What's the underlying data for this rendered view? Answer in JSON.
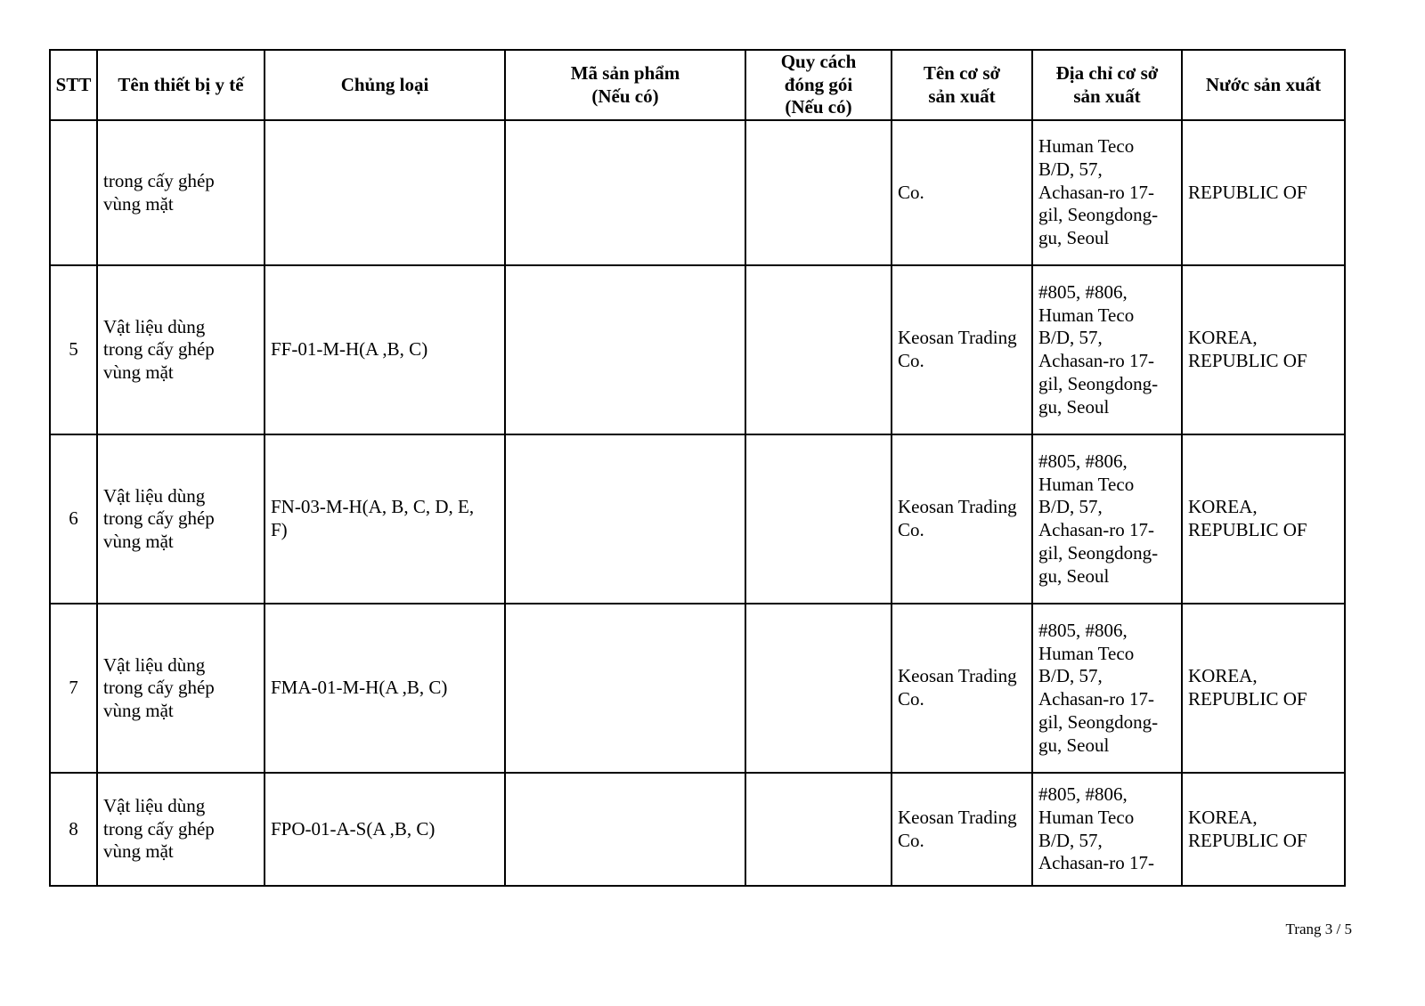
{
  "table": {
    "headers": [
      "STT",
      "Tên thiết bị y tế",
      "Chủng loại",
      "Mã sản phẩm\n(Nếu có)",
      "Quy cách\nđóng gói\n(Nếu có)",
      "Tên cơ sở\nsản xuất",
      "Địa chỉ cơ sở\nsản xuất",
      "Nước sản xuất"
    ],
    "rows": [
      {
        "stt": "",
        "name": "trong cấy ghép\nvùng mặt",
        "type": "",
        "code": "",
        "packing": "",
        "manufacturer": "Co.",
        "address": "Human Teco\nB/D, 57,\nAchasan-ro 17-\ngil, Seongdong-\ngu, Seoul",
        "country": "REPUBLIC OF"
      },
      {
        "stt": "5",
        "name": "Vật liệu dùng\ntrong cấy ghép\nvùng mặt",
        "type": "FF-01-M-H(A ,B, C)",
        "code": "",
        "packing": "",
        "manufacturer": "Keosan Trading\nCo.",
        "address": "#805, #806,\nHuman Teco\nB/D, 57,\nAchasan-ro 17-\ngil, Seongdong-\ngu, Seoul",
        "country": "KOREA,\nREPUBLIC OF"
      },
      {
        "stt": "6",
        "name": "Vật liệu dùng\ntrong cấy ghép\nvùng mặt",
        "type": "FN-03-M-H(A, B, C, D, E,\nF)",
        "code": "",
        "packing": "",
        "manufacturer": "Keosan Trading\nCo.",
        "address": "#805, #806,\nHuman Teco\nB/D, 57,\nAchasan-ro 17-\ngil, Seongdong-\ngu, Seoul",
        "country": "KOREA,\nREPUBLIC OF"
      },
      {
        "stt": "7",
        "name": "Vật liệu dùng\ntrong cấy ghép\nvùng mặt",
        "type": "FMA-01-M-H(A ,B, C)",
        "code": "",
        "packing": "",
        "manufacturer": "Keosan Trading\nCo.",
        "address": "#805, #806,\nHuman Teco\nB/D, 57,\nAchasan-ro 17-\ngil, Seongdong-\ngu, Seoul",
        "country": "KOREA,\nREPUBLIC OF"
      },
      {
        "stt": "8",
        "name": "Vật liệu dùng\ntrong cấy ghép\nvùng mặt",
        "type": "FPO-01-A-S(A ,B, C)",
        "code": "",
        "packing": "",
        "manufacturer": "Keosan Trading\nCo.",
        "address": "#805, #806,\nHuman Teco\nB/D, 57,\nAchasan-ro 17-",
        "country": "KOREA,\nREPUBLIC OF"
      }
    ]
  },
  "footer": {
    "page_label": "Trang 3 / 5"
  }
}
